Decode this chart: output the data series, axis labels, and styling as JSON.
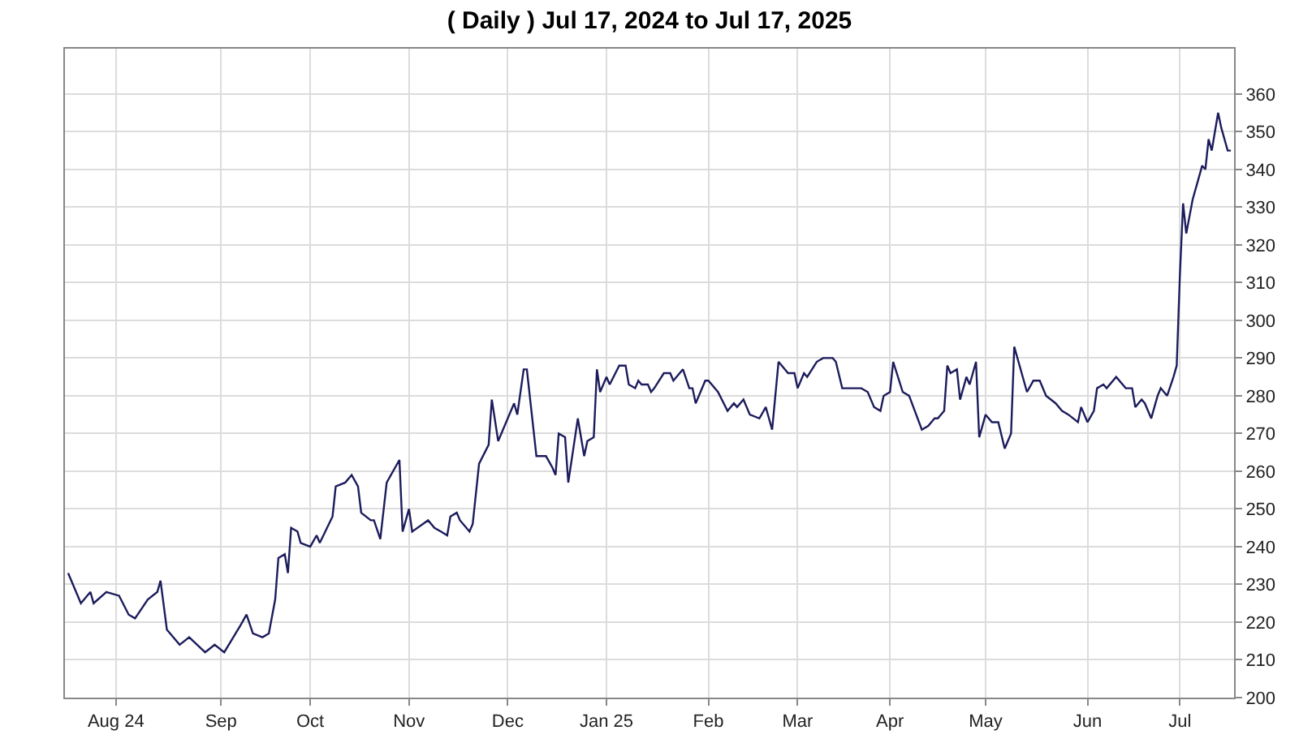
{
  "chart_data": {
    "type": "line",
    "title": "( Daily ) Jul 17, 2024 to Jul 17, 2025",
    "x": [
      "2024-07-17",
      "2024-07-21",
      "2024-07-24",
      "2024-07-25",
      "2024-07-29",
      "2024-08-02",
      "2024-08-05",
      "2024-08-07",
      "2024-08-11",
      "2024-08-14",
      "2024-08-15",
      "2024-08-17",
      "2024-08-21",
      "2024-08-24",
      "2024-08-29",
      "2024-09-01",
      "2024-09-04",
      "2024-09-09",
      "2024-09-11",
      "2024-09-13",
      "2024-09-16",
      "2024-09-18",
      "2024-09-20",
      "2024-09-21",
      "2024-09-23",
      "2024-09-24",
      "2024-09-25",
      "2024-09-27",
      "2024-09-28",
      "2024-10-01",
      "2024-10-03",
      "2024-10-04",
      "2024-10-08",
      "2024-10-09",
      "2024-10-12",
      "2024-10-14",
      "2024-10-16",
      "2024-10-17",
      "2024-10-20",
      "2024-10-21",
      "2024-10-23",
      "2024-10-25",
      "2024-10-29",
      "2024-10-30",
      "2024-11-01",
      "2024-11-02",
      "2024-11-07",
      "2024-11-09",
      "2024-11-11",
      "2024-11-13",
      "2024-11-14",
      "2024-11-16",
      "2024-11-17",
      "2024-11-20",
      "2024-11-21",
      "2024-11-23",
      "2024-11-26",
      "2024-11-27",
      "2024-11-29",
      "2024-12-04",
      "2024-12-05",
      "2024-12-07",
      "2024-12-08",
      "2024-12-11",
      "2024-12-14",
      "2024-12-16",
      "2024-12-17",
      "2024-12-18",
      "2024-12-20",
      "2024-12-21",
      "2024-12-24",
      "2024-12-26",
      "2024-12-27",
      "2024-12-29",
      "2024-12-30",
      "2024-12-31",
      "2025-01-02",
      "2025-01-03",
      "2025-01-06",
      "2025-01-08",
      "2025-01-09",
      "2025-01-11",
      "2025-01-12",
      "2025-01-13",
      "2025-01-15",
      "2025-01-16",
      "2025-01-17",
      "2025-01-20",
      "2025-01-22",
      "2025-01-23",
      "2025-01-26",
      "2025-01-28",
      "2025-01-29",
      "2025-01-30",
      "2025-02-02",
      "2025-02-03",
      "2025-02-06",
      "2025-02-09",
      "2025-02-11",
      "2025-02-12",
      "2025-02-14",
      "2025-02-16",
      "2025-02-19",
      "2025-02-21",
      "2025-02-23",
      "2025-02-25",
      "2025-02-28",
      "2025-03-02",
      "2025-03-03",
      "2025-03-05",
      "2025-03-06",
      "2025-03-09",
      "2025-03-11",
      "2025-03-13",
      "2025-03-14",
      "2025-03-15",
      "2025-03-17",
      "2025-03-23",
      "2025-03-25",
      "2025-03-27",
      "2025-03-29",
      "2025-03-30",
      "2025-04-01",
      "2025-04-02",
      "2025-04-05",
      "2025-04-07",
      "2025-04-11",
      "2025-04-13",
      "2025-04-15",
      "2025-04-16",
      "2025-04-18",
      "2025-04-19",
      "2025-04-20",
      "2025-04-22",
      "2025-04-23",
      "2025-04-25",
      "2025-04-26",
      "2025-04-28",
      "2025-04-29",
      "2025-05-01",
      "2025-05-03",
      "2025-05-04",
      "2025-05-05",
      "2025-05-07",
      "2025-05-09",
      "2025-05-10",
      "2025-05-14",
      "2025-05-16",
      "2025-05-18",
      "2025-05-20",
      "2025-05-23",
      "2025-05-25",
      "2025-05-27",
      "2025-05-30",
      "2025-05-31",
      "2025-06-02",
      "2025-06-04",
      "2025-06-05",
      "2025-06-07",
      "2025-06-08",
      "2025-06-11",
      "2025-06-14",
      "2025-06-16",
      "2025-06-17",
      "2025-06-19",
      "2025-06-20",
      "2025-06-22",
      "2025-06-24",
      "2025-06-25",
      "2025-06-27",
      "2025-06-29",
      "2025-06-30",
      "2025-07-01",
      "2025-07-02",
      "2025-07-03",
      "2025-07-05",
      "2025-07-07",
      "2025-07-08",
      "2025-07-09",
      "2025-07-10",
      "2025-07-11",
      "2025-07-13",
      "2025-07-14",
      "2025-07-16",
      "2025-07-17"
    ],
    "series": [
      {
        "color": "#1c1c5c",
        "values": [
          233,
          225,
          228,
          225,
          228,
          227,
          222,
          221,
          226,
          228,
          231,
          218,
          214,
          216,
          212,
          214,
          212,
          219,
          222,
          217,
          216,
          217,
          226,
          237,
          238,
          233,
          245,
          244,
          241,
          240,
          243,
          241,
          248,
          256,
          257,
          259,
          256,
          249,
          247,
          247,
          242,
          257,
          263,
          244,
          250,
          244,
          247,
          245,
          244,
          243,
          248,
          249,
          247,
          244,
          246,
          262,
          267,
          279,
          268,
          278,
          275,
          287,
          287,
          264,
          264,
          261,
          259,
          270,
          269,
          257,
          274,
          264,
          268,
          269,
          287,
          281,
          285,
          283,
          288,
          288,
          283,
          282,
          284,
          283,
          283,
          281,
          282,
          286,
          286,
          284,
          287,
          282,
          282,
          278,
          284,
          284,
          281,
          276,
          278,
          277,
          279,
          275,
          274,
          277,
          271,
          289,
          286,
          286,
          282,
          286,
          285,
          289,
          290,
          290,
          290,
          289,
          282,
          282,
          281,
          277,
          276,
          280,
          281,
          289,
          281,
          280,
          271,
          272,
          274,
          274,
          276,
          288,
          286,
          287,
          279,
          285,
          283,
          289,
          269,
          275,
          273,
          273,
          273,
          266,
          270,
          293,
          281,
          284,
          284,
          280,
          278,
          276,
          275,
          273,
          277,
          273,
          276,
          282,
          283,
          282,
          285,
          282,
          282,
          277,
          279,
          278,
          274,
          280,
          282,
          280,
          285,
          288,
          312,
          331,
          323,
          332,
          338,
          341,
          340,
          348,
          345,
          355,
          351,
          345,
          345
        ]
      }
    ],
    "xlim": [
      "2024-07-16",
      "2025-07-18"
    ],
    "xticks": [
      {
        "value": "2024-08-01",
        "label": "Aug 24"
      },
      {
        "value": "2024-09-03",
        "label": "Sep"
      },
      {
        "value": "2024-10-01",
        "label": "Oct"
      },
      {
        "value": "2024-11-01",
        "label": "Nov"
      },
      {
        "value": "2024-12-02",
        "label": "Dec"
      },
      {
        "value": "2025-01-02",
        "label": "Jan 25"
      },
      {
        "value": "2025-02-03",
        "label": "Feb"
      },
      {
        "value": "2025-03-03",
        "label": "Mar"
      },
      {
        "value": "2025-04-01",
        "label": "Apr"
      },
      {
        "value": "2025-05-01",
        "label": "May"
      },
      {
        "value": "2025-06-02",
        "label": "Jun"
      },
      {
        "value": "2025-07-01",
        "label": "Jul"
      }
    ],
    "ylim": [
      200,
      372
    ],
    "yticks": [
      200,
      210,
      220,
      230,
      240,
      250,
      260,
      270,
      280,
      290,
      300,
      310,
      320,
      330,
      340,
      350,
      360
    ],
    "grid": true,
    "marker": "none",
    "line_style": "solid"
  }
}
